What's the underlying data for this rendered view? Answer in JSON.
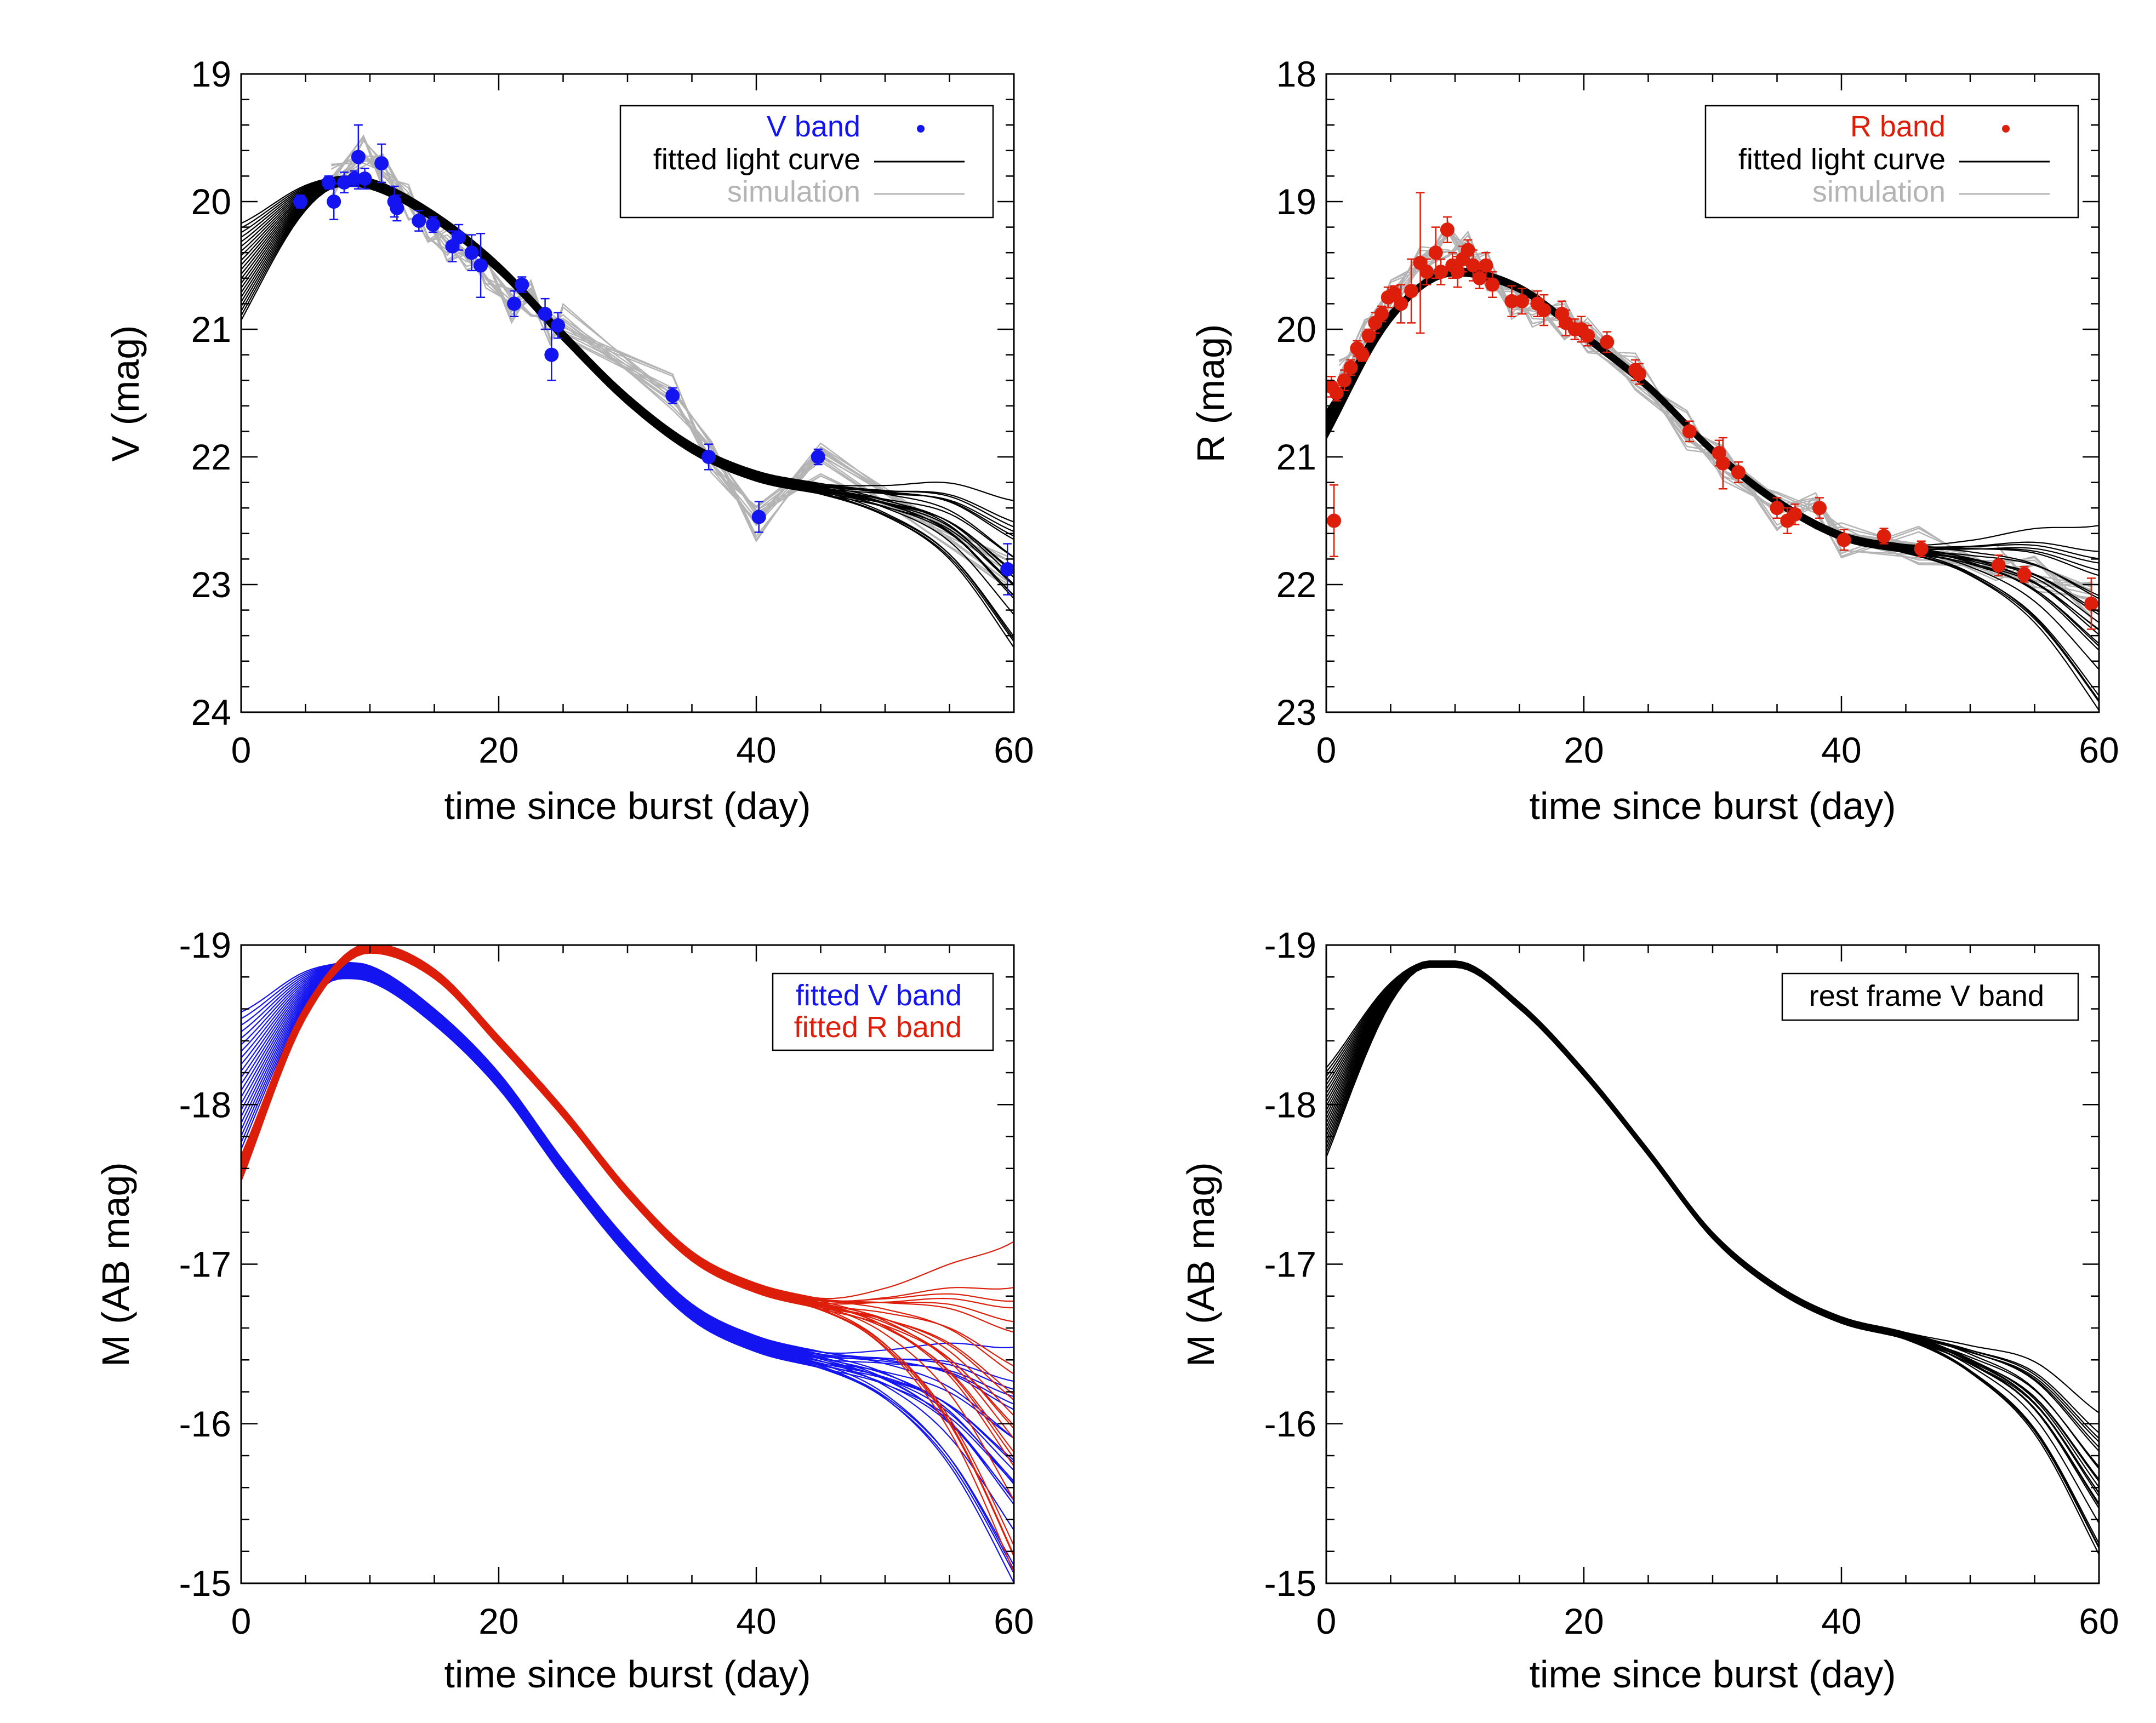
{
  "colors": {
    "blue": "#1414f0",
    "red": "#dc1e0a",
    "black": "#000000",
    "gray": "#b4b4b4"
  },
  "chart_data": [
    {
      "id": "v-band",
      "type": "scatter",
      "xlabel": "time since burst (day)",
      "ylabel": "V (mag)",
      "xlim": [
        0,
        60
      ],
      "ylim": [
        19,
        24
      ],
      "y_inverted": true,
      "xticks": [
        0,
        20,
        40,
        60
      ],
      "yticks": [
        19,
        20,
        21,
        22,
        23,
        24
      ],
      "legend_position": "top-right",
      "legend": [
        {
          "label": "V band",
          "color": "#1414f0",
          "kind": "point"
        },
        {
          "label": "fitted light curve",
          "color": "#000000",
          "kind": "line"
        },
        {
          "label": "simulation",
          "color": "#b4b4b4",
          "kind": "line"
        }
      ],
      "points": {
        "color": "#1414f0",
        "x": [
          4.6,
          6.8,
          7.2,
          8.0,
          8.8,
          9.1,
          9.6,
          10.9,
          11.9,
          12.1,
          13.8,
          14.9,
          16.4,
          16.9,
          17.9,
          18.6,
          21.2,
          21.8,
          23.6,
          24.1,
          24.6,
          33.5,
          36.3,
          40.2,
          44.8,
          59.5
        ],
        "y": [
          20.0,
          19.85,
          20.0,
          19.85,
          19.82,
          19.65,
          19.82,
          19.7,
          20.0,
          20.05,
          20.15,
          20.18,
          20.35,
          20.28,
          20.4,
          20.5,
          20.8,
          20.65,
          20.88,
          21.2,
          20.97,
          21.52,
          22.0,
          22.47,
          22.0,
          22.88
        ],
        "err": [
          0.05,
          0.05,
          0.14,
          0.08,
          0.06,
          0.25,
          0.08,
          0.15,
          0.12,
          0.1,
          0.08,
          0.06,
          0.12,
          0.1,
          0.14,
          0.25,
          0.1,
          0.06,
          0.12,
          0.2,
          0.1,
          0.06,
          0.1,
          0.12,
          0.06,
          0.2
        ]
      },
      "fit": {
        "color": "#000000",
        "x": [
          0,
          5,
          8,
          10,
          15,
          20,
          25,
          30,
          35,
          40,
          45,
          50,
          55,
          60
        ],
        "y": [
          20.55,
          19.97,
          19.84,
          19.86,
          20.12,
          20.52,
          21.05,
          21.55,
          21.93,
          22.15,
          22.25,
          22.35,
          22.52,
          22.95
        ],
        "spread_start": 0.34,
        "spread_mid": 0.08,
        "spread_end": 0.7,
        "n_curves": 22
      },
      "simulation": {
        "color": "#b4b4b4",
        "n_curves": 14,
        "x": [
          7,
          9.5,
          11,
          13,
          14.5,
          16,
          17.5,
          19,
          21,
          22.5,
          24,
          25,
          33.5,
          36.5,
          40,
          45,
          59.5
        ],
        "y": [
          19.85,
          19.6,
          19.75,
          20.0,
          20.2,
          20.35,
          20.4,
          20.55,
          20.8,
          20.75,
          21.0,
          20.95,
          21.5,
          22.0,
          22.5,
          22.0,
          22.9
        ],
        "spread": 0.2
      }
    },
    {
      "id": "r-band",
      "type": "scatter",
      "xlabel": "time since burst (day)",
      "ylabel": "R (mag)",
      "xlim": [
        0,
        60
      ],
      "ylim": [
        18,
        23
      ],
      "y_inverted": true,
      "xticks": [
        0,
        20,
        40,
        60
      ],
      "yticks": [
        18,
        19,
        20,
        21,
        22,
        23
      ],
      "legend_position": "top-right",
      "legend": [
        {
          "label": "R band",
          "color": "#dc1e0a",
          "kind": "point"
        },
        {
          "label": "fitted light curve",
          "color": "#000000",
          "kind": "line"
        },
        {
          "label": "simulation",
          "color": "#b4b4b4",
          "kind": "line"
        }
      ],
      "points": {
        "color": "#dc1e0a",
        "x": [
          0.4,
          0.6,
          0.8,
          1.4,
          1.9,
          2.4,
          2.8,
          3.3,
          3.8,
          4.3,
          4.8,
          5.3,
          5.8,
          6.6,
          7.3,
          7.8,
          8.5,
          8.9,
          9.4,
          9.8,
          10.2,
          10.6,
          11.0,
          11.4,
          11.9,
          12.4,
          12.9,
          14.4,
          15.2,
          16.4,
          16.9,
          18.3,
          18.6,
          19.3,
          19.8,
          20.3,
          21.8,
          24.0,
          24.3,
          28.2,
          30.5,
          30.8,
          32.0,
          35.0,
          35.8,
          36.4,
          38.3,
          40.2,
          43.3,
          46.2,
          52.2,
          54.2,
          59.4
        ],
        "y": [
          20.45,
          21.5,
          20.5,
          20.4,
          20.3,
          20.15,
          20.2,
          20.05,
          19.95,
          19.88,
          19.75,
          19.72,
          19.8,
          19.7,
          19.48,
          19.55,
          19.4,
          19.55,
          19.22,
          19.5,
          19.55,
          19.45,
          19.38,
          19.5,
          19.6,
          19.5,
          19.65,
          19.78,
          19.78,
          19.8,
          19.85,
          19.88,
          19.95,
          20.0,
          20.0,
          20.05,
          20.1,
          20.32,
          20.35,
          20.8,
          20.97,
          21.05,
          21.12,
          21.4,
          21.5,
          21.45,
          21.4,
          21.65,
          21.62,
          21.72,
          21.85,
          21.92,
          22.15
        ],
        "err": [
          0.08,
          0.28,
          0.06,
          0.08,
          0.06,
          0.06,
          0.05,
          0.05,
          0.08,
          0.06,
          0.08,
          0.06,
          0.15,
          0.25,
          0.55,
          0.1,
          0.2,
          0.1,
          0.1,
          0.1,
          0.12,
          0.1,
          0.08,
          0.12,
          0.08,
          0.1,
          0.1,
          0.12,
          0.1,
          0.1,
          0.12,
          0.1,
          0.1,
          0.08,
          0.1,
          0.08,
          0.08,
          0.08,
          0.08,
          0.08,
          0.1,
          0.2,
          0.08,
          0.08,
          0.1,
          0.08,
          0.08,
          0.08,
          0.06,
          0.06,
          0.08,
          0.06,
          0.2
        ]
      },
      "fit": {
        "color": "#000000",
        "x": [
          0,
          5,
          10,
          15,
          20,
          25,
          30,
          35,
          40,
          45,
          50,
          55,
          60
        ],
        "y": [
          20.75,
          19.9,
          19.55,
          19.68,
          20.05,
          20.45,
          20.95,
          21.35,
          21.62,
          21.72,
          21.8,
          21.95,
          22.3
        ],
        "spread_start": 0.08,
        "spread_mid": 0.06,
        "spread_end": 0.9,
        "n_curves": 22
      },
      "simulation": {
        "color": "#b4b4b4",
        "n_curves": 14,
        "x": [
          1,
          3,
          5,
          7.3,
          9.5,
          11,
          12.5,
          14.4,
          16,
          18.5,
          20.3,
          24,
          28,
          30.8,
          35,
          38,
          40,
          46,
          52,
          55,
          59.5
        ],
        "y": [
          20.4,
          20.05,
          19.75,
          19.5,
          19.3,
          19.4,
          19.55,
          19.78,
          19.82,
          19.92,
          20.05,
          20.35,
          20.8,
          21.05,
          21.4,
          21.4,
          21.65,
          21.72,
          21.85,
          21.92,
          22.1
        ],
        "spread": 0.22
      }
    },
    {
      "id": "absolute-mag",
      "type": "line",
      "xlabel": "time since burst (day)",
      "ylabel": "M (AB mag)",
      "xlim": [
        0,
        60
      ],
      "ylim": [
        -19.0,
        -15.0
      ],
      "y_inverted": true,
      "xticks": [
        0,
        20,
        40,
        60
      ],
      "yticks": [
        -19,
        -18,
        -17,
        -16,
        -15
      ],
      "tick_labels": [
        "-19",
        "-18",
        "-17",
        "-16",
        "-15"
      ],
      "legend_position": "top-right",
      "legend": [
        {
          "label": "fitted V band",
          "color": "#1414f0",
          "kind": "text"
        },
        {
          "label": "fitted R band",
          "color": "#dc1e0a",
          "kind": "text"
        }
      ],
      "series": [
        {
          "name": "fitted V band",
          "color": "#1414f0",
          "x": [
            0,
            5,
            8,
            10,
            15,
            20,
            25,
            30,
            35,
            40,
            45,
            50,
            55,
            60
          ],
          "y": [
            -18.15,
            -18.72,
            -18.84,
            -18.82,
            -18.55,
            -18.15,
            -17.6,
            -17.1,
            -16.7,
            -16.5,
            -16.4,
            -16.3,
            -16.1,
            -15.7
          ],
          "spread_start": 0.38,
          "spread_mid": 0.1,
          "spread_end": 0.9,
          "n_curves": 22
        },
        {
          "name": "fitted R band",
          "color": "#dc1e0a",
          "x": [
            0,
            5,
            10,
            15,
            20,
            25,
            30,
            35,
            40,
            45,
            50,
            55,
            60
          ],
          "y": [
            -17.6,
            -18.58,
            -18.98,
            -18.82,
            -18.4,
            -17.95,
            -17.45,
            -17.05,
            -16.85,
            -16.75,
            -16.65,
            -16.45,
            -16.05
          ],
          "spread_start": 0.05,
          "spread_mid": 0.06,
          "spread_end": 1.3,
          "n_curves": 22
        }
      ]
    },
    {
      "id": "rest-frame-v",
      "type": "line",
      "xlabel": "time since burst (day)",
      "ylabel": "M (AB mag)",
      "xlim": [
        0,
        60
      ],
      "ylim": [
        -19.0,
        -15.0
      ],
      "y_inverted": true,
      "xticks": [
        0,
        20,
        40,
        60
      ],
      "yticks": [
        -19,
        -18,
        -17,
        -16,
        -15
      ],
      "tick_labels": [
        "-19",
        "-18",
        "-17",
        "-16",
        "-15"
      ],
      "legend_position": "top-right",
      "legend": [
        {
          "label": "rest frame V band",
          "color": "#000000",
          "kind": "text"
        }
      ],
      "series": [
        {
          "name": "rest frame V band",
          "color": "#000000",
          "x": [
            0,
            5,
            8,
            10,
            15,
            20,
            25,
            30,
            35,
            40,
            45,
            50,
            55,
            60
          ],
          "y": [
            -17.95,
            -18.7,
            -18.88,
            -18.88,
            -18.62,
            -18.2,
            -17.7,
            -17.18,
            -16.85,
            -16.65,
            -16.55,
            -16.4,
            -16.15,
            -15.6
          ],
          "spread_start": 0.26,
          "spread_mid": 0.04,
          "spread_end": 0.55,
          "n_curves": 22
        }
      ]
    }
  ]
}
